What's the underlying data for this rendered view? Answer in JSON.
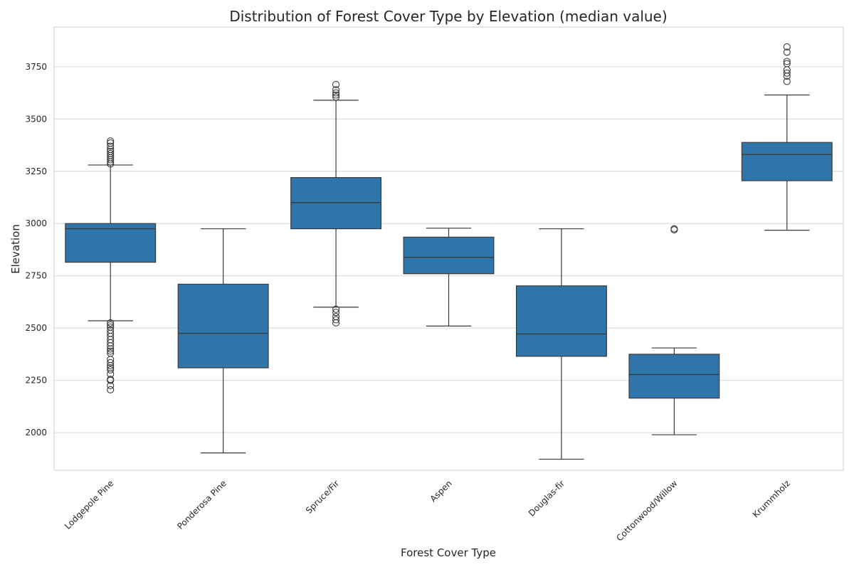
{
  "chart_data": {
    "type": "box",
    "title": "Distribution of Forest Cover Type by Elevation (median value)",
    "xlabel": "Forest Cover Type",
    "ylabel": "Elevation",
    "ylim": [
      1820,
      3940
    ],
    "yticks": [
      2000,
      2250,
      2500,
      2750,
      3000,
      3250,
      3500,
      3750
    ],
    "grid": true,
    "box_color": "#2e75ab",
    "line_color": "#3a3a3a",
    "categories": [
      "Lodgepole Pine",
      "Ponderosa Pine",
      "Spruce/Fir",
      "Aspen",
      "Douglas-fir",
      "Cottonwood/Willow",
      "Krummholz"
    ],
    "boxes": [
      {
        "category": "Lodgepole Pine",
        "whislo": 2535,
        "q1": 2815,
        "median": 2975,
        "q3": 3000,
        "whishi": 3280,
        "fliers": [
          2205,
          2225,
          2250,
          2255,
          2280,
          2300,
          2310,
          2320,
          2335,
          2350,
          2380,
          2390,
          2400,
          2415,
          2430,
          2445,
          2460,
          2475,
          2490,
          2505,
          2515,
          2525,
          3285,
          3295,
          3305,
          3315,
          3325,
          3335,
          3345,
          3355,
          3370,
          3385,
          3395
        ]
      },
      {
        "category": "Ponderosa Pine",
        "whislo": 1903,
        "q1": 2310,
        "median": 2475,
        "q3": 2710,
        "whishi": 2975,
        "fliers": []
      },
      {
        "category": "Spruce/Fir",
        "whislo": 2600,
        "q1": 2975,
        "median": 3100,
        "q3": 3220,
        "whishi": 3590,
        "fliers": [
          2525,
          2540,
          2555,
          2575,
          2590,
          3605,
          3615,
          3625,
          3640,
          3665
        ]
      },
      {
        "category": "Aspen",
        "whislo": 2510,
        "q1": 2760,
        "median": 2838,
        "q3": 2935,
        "whishi": 2978,
        "fliers": []
      },
      {
        "category": "Douglas-fir",
        "whislo": 1873,
        "q1": 2365,
        "median": 2472,
        "q3": 2702,
        "whishi": 2975,
        "fliers": []
      },
      {
        "category": "Cottonwood/Willow",
        "whislo": 1990,
        "q1": 2165,
        "median": 2278,
        "q3": 2375,
        "whishi": 2405,
        "fliers": [
          2970,
          2975
        ]
      },
      {
        "category": "Krummholz",
        "whislo": 2968,
        "q1": 3205,
        "median": 3330,
        "q3": 3388,
        "whishi": 3615,
        "fliers": [
          3680,
          3705,
          3720,
          3735,
          3765,
          3775,
          3820,
          3845
        ]
      }
    ]
  }
}
